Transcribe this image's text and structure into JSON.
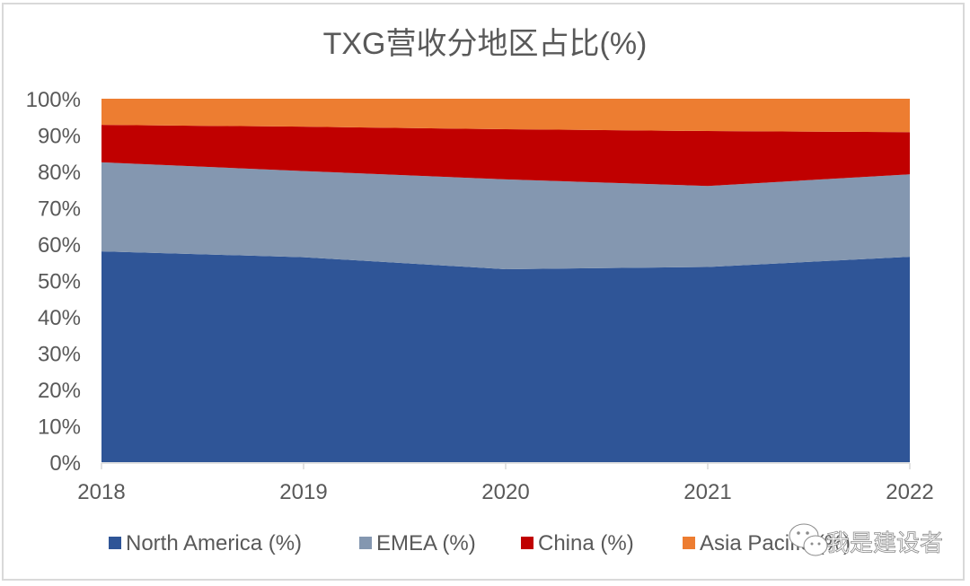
{
  "chart_data": {
    "type": "area",
    "stacked": "percent",
    "title": "TXG营收分地区占比(%)",
    "xlabel": "",
    "ylabel": "",
    "x": [
      "2018",
      "2019",
      "2020",
      "2021",
      "2022"
    ],
    "ylim": [
      0,
      100
    ],
    "yticks": [
      "0%",
      "10%",
      "20%",
      "30%",
      "40%",
      "50%",
      "60%",
      "70%",
      "80%",
      "90%",
      "100%"
    ],
    "grid": false,
    "legend_position": "bottom",
    "series": [
      {
        "name": "North America (%)",
        "color": "#2f5597",
        "values": [
          58.0,
          56.4,
          53.1,
          53.7,
          56.5
        ]
      },
      {
        "name": "EMEA (%)",
        "color": "#8497b0",
        "values": [
          24.5,
          23.7,
          24.7,
          22.3,
          22.7
        ]
      },
      {
        "name": "China (%)",
        "color": "#c00000",
        "values": [
          10.3,
          12.2,
          13.8,
          15.1,
          11.6
        ]
      },
      {
        "name": "Asia Pacific (%)",
        "color": "#ed7d31",
        "values": [
          7.2,
          7.7,
          8.4,
          8.9,
          9.2
        ]
      }
    ]
  },
  "watermark": {
    "text": "我是建设者",
    "icon": "wechat-icon"
  }
}
